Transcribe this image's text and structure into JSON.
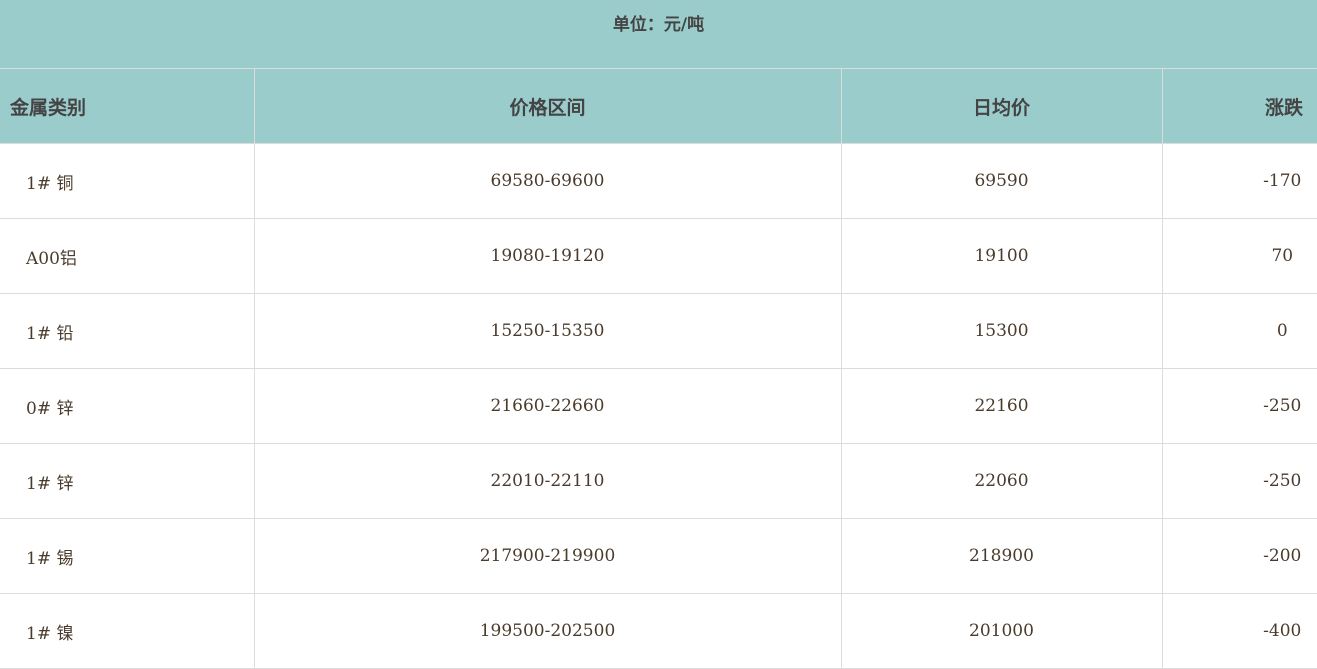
{
  "unit": "单位：元/吨",
  "columns": [
    "金属类别",
    "价格区间",
    "日均价",
    "涨跌"
  ],
  "rows": [
    {
      "metal": "1# 铜",
      "range": "69580-69600",
      "avg": "69590",
      "change": "-170"
    },
    {
      "metal": "A00铝",
      "range": "19080-19120",
      "avg": "19100",
      "change": "70"
    },
    {
      "metal": "1# 铅",
      "range": "15250-15350",
      "avg": "15300",
      "change": "0"
    },
    {
      "metal": "0# 锌",
      "range": "21660-22660",
      "avg": "22160",
      "change": "-250"
    },
    {
      "metal": "1# 锌",
      "range": "22010-22110",
      "avg": "22060",
      "change": "-250"
    },
    {
      "metal": "1# 锡",
      "range": "217900-219900",
      "avg": "218900",
      "change": "-200"
    },
    {
      "metal": "1# 镍",
      "range": "199500-202500",
      "avg": "201000",
      "change": "-400"
    }
  ],
  "colors": {
    "header_bg": "#9acccc"
  }
}
